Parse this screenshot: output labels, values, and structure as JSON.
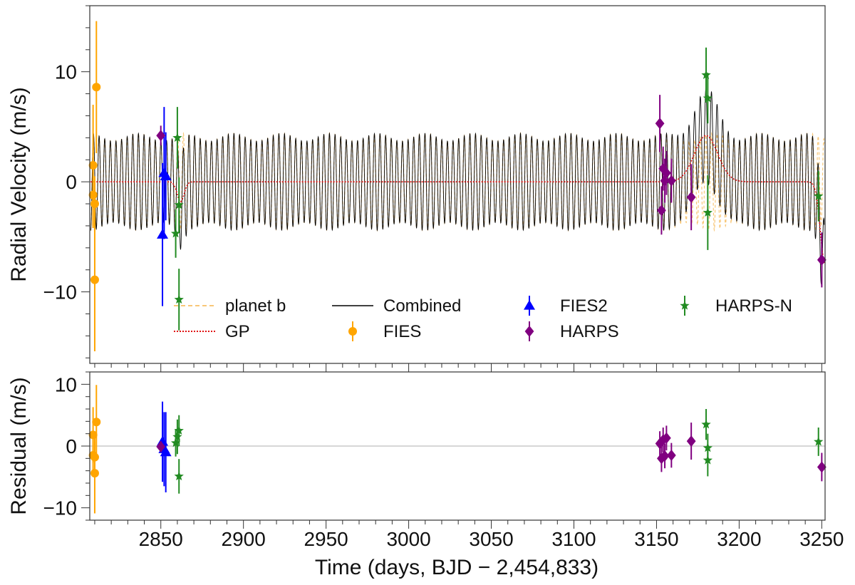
{
  "chart_data": {
    "type": "scatter",
    "panels": [
      {
        "name": "top",
        "ylabel": "Radial Velocity (m/s)",
        "ylim": [
          -16.5,
          16
        ],
        "yticks": [
          10,
          0,
          -10
        ],
        "ytick_labels": [
          "10",
          "0",
          "−10"
        ]
      },
      {
        "name": "residual",
        "ylabel": "Residual (m/s)",
        "ylim": [
          -12,
          12
        ],
        "yticks": [
          10,
          0,
          -10
        ],
        "ytick_labels": [
          "10",
          "0",
          "−10"
        ]
      }
    ],
    "xlabel": "Time (days, BJD − 2,454,833)",
    "xlim": [
      2807,
      3252
    ],
    "xticks": [
      2850,
      2900,
      2950,
      3000,
      3050,
      3100,
      3150,
      3200,
      3250
    ],
    "xtick_labels": [
      "2850",
      "2900",
      "2950",
      "3000",
      "3050",
      "3100",
      "3150",
      "3200",
      "3250"
    ],
    "model": {
      "planet_b": {
        "amplitude": 4.4,
        "period": 3.4
      },
      "gp_features": [
        {
          "center": 2862,
          "height": -1.8,
          "width": 3
        },
        {
          "center": 3180,
          "height": 4.2,
          "width": 10
        },
        {
          "center": 3252,
          "height": -7.5,
          "width": 4
        }
      ]
    },
    "legend": [
      {
        "label": "planet b",
        "key": "planet_b",
        "color": "#f8c778",
        "marker": "dashed"
      },
      {
        "label": "Combined",
        "key": "combined",
        "color": "#000000",
        "marker": "line"
      },
      {
        "label": "FIES2",
        "key": "fies2",
        "color": "#0000ff",
        "marker": "triangle"
      },
      {
        "label": "HARPS-N",
        "key": "harpsn",
        "color": "#228b22",
        "marker": "star"
      },
      {
        "label": "GP",
        "key": "gp",
        "color": "#e01010",
        "marker": "dotted"
      },
      {
        "label": "FIES",
        "key": "fies",
        "color": "#ffa500",
        "marker": "circle"
      },
      {
        "label": "HARPS",
        "key": "harps",
        "color": "#800080",
        "marker": "diamond"
      }
    ],
    "series": [
      {
        "name": "FIES",
        "color": "#ffa500",
        "marker": "circle",
        "points": [
          {
            "x": 2809,
            "y": 1.5,
            "err": 5.5,
            "res": 1.8,
            "res_err": 4.5
          },
          {
            "x": 2809,
            "y": -1.2,
            "err": 3.0,
            "res": -1.5,
            "res_err": 3.0
          },
          {
            "x": 2810,
            "y": -8.9,
            "err": 6.5,
            "res": -4.4,
            "res_err": 6.5
          },
          {
            "x": 2811,
            "y": 8.6,
            "err": 6.0,
            "res": 3.9,
            "res_err": 6.0
          },
          {
            "x": 2810,
            "y": -2.0,
            "err": 2.5,
            "res": -1.8,
            "res_err": 2.5
          }
        ]
      },
      {
        "name": "FIES2",
        "color": "#0000ff",
        "marker": "triangle",
        "points": [
          {
            "x": 2851,
            "y": -4.8,
            "err": 6.5,
            "res": 0.7,
            "res_err": 6.5
          },
          {
            "x": 2852,
            "y": 0.8,
            "err": 6.0,
            "res": -0.5,
            "res_err": 6.0
          },
          {
            "x": 2853,
            "y": 0.5,
            "err": 4.0,
            "res": -1.0,
            "res_err": 6.5
          }
        ]
      },
      {
        "name": "HARPS",
        "color": "#800080",
        "marker": "diamond",
        "points": [
          {
            "x": 2850,
            "y": 4.2,
            "err": 0.9,
            "res": -0.1,
            "res_err": 0.9
          },
          {
            "x": 3152,
            "y": 5.3,
            "err": 2.6,
            "res": 0.4,
            "res_err": 2.0
          },
          {
            "x": 3153,
            "y": -2.6,
            "err": 2.2,
            "res": -2.0,
            "res_err": 2.2
          },
          {
            "x": 3154,
            "y": 1.2,
            "err": 2.0,
            "res": 1.0,
            "res_err": 2.0
          },
          {
            "x": 3155,
            "y": 0.1,
            "err": 2.0,
            "res": -1.6,
            "res_err": 2.0
          },
          {
            "x": 3156,
            "y": 0.8,
            "err": 2.0,
            "res": 1.3,
            "res_err": 2.0
          },
          {
            "x": 3159,
            "y": 0.1,
            "err": 2.0,
            "res": -1.5,
            "res_err": 2.0
          },
          {
            "x": 3171,
            "y": -1.4,
            "err": 3.0,
            "res": 0.8,
            "res_err": 3.0
          },
          {
            "x": 3250,
            "y": -7.1,
            "err": 2.5,
            "res": -3.4,
            "res_err": 2.3
          }
        ]
      },
      {
        "name": "HARPS-N",
        "color": "#228b22",
        "marker": "star",
        "points": [
          {
            "x": 2859,
            "y": -4.7,
            "err": 2.2,
            "res": 0.5,
            "res_err": 2.2
          },
          {
            "x": 2860,
            "y": 4.0,
            "err": 2.8,
            "res": 1.5,
            "res_err": 2.8
          },
          {
            "x": 2861,
            "y": -2.1,
            "err": 2.5,
            "res": 2.5,
            "res_err": 2.5
          },
          {
            "x": 2861,
            "y": -10.7,
            "err": 2.8,
            "res": -4.9,
            "res_err": 2.8
          },
          {
            "x": 3180,
            "y": 9.7,
            "err": 2.5,
            "res": 3.5,
            "res_err": 2.5
          },
          {
            "x": 3181,
            "y": 7.6,
            "err": 2.3,
            "res": -0.3,
            "res_err": 2.3
          },
          {
            "x": 3181,
            "y": -2.8,
            "err": 3.4,
            "res": -2.3,
            "res_err": 2.6
          },
          {
            "x": 3248,
            "y": -1.3,
            "err": 2.3,
            "res": 0.7,
            "res_err": 2.3
          }
        ]
      }
    ]
  }
}
